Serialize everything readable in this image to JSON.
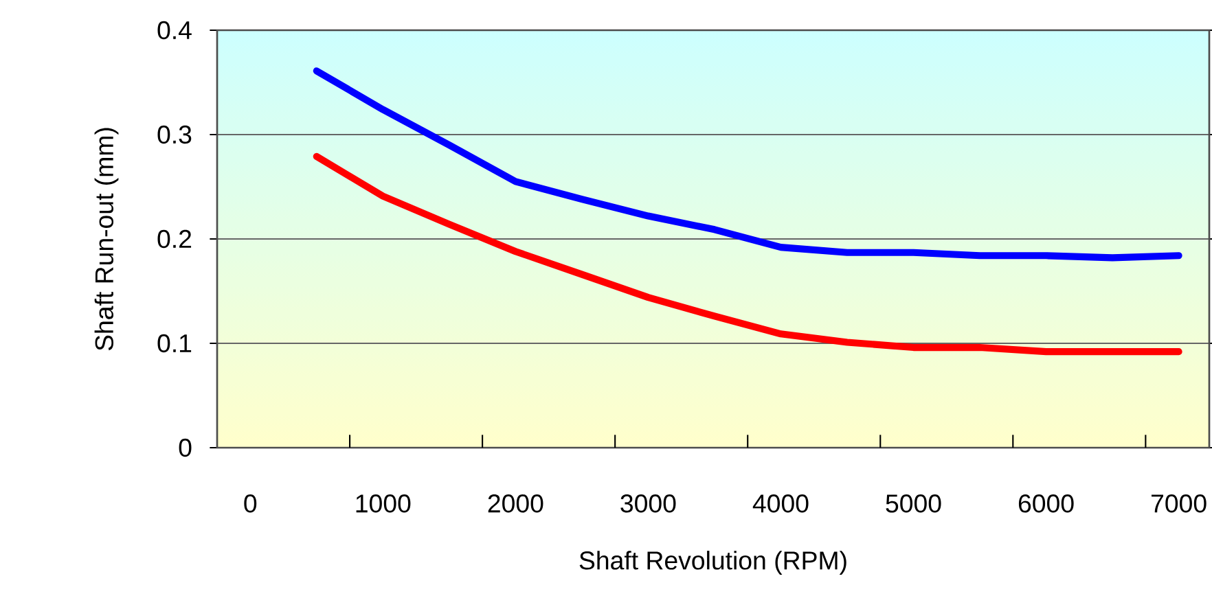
{
  "chart_data": {
    "type": "line",
    "xlabel": "Shaft Revolution (RPM)",
    "ylabel": "Shaft Run-out (mm)",
    "x": [
      500,
      1000,
      1500,
      2000,
      2500,
      3000,
      3500,
      4000,
      4500,
      5000,
      5500,
      6000,
      6500,
      7000
    ],
    "series": [
      {
        "color": "#0000ff",
        "values": [
          0.361,
          0.324,
          0.29,
          0.255,
          0.238,
          0.222,
          0.209,
          0.192,
          0.187,
          0.187,
          0.184,
          0.184,
          0.182,
          0.184
        ]
      },
      {
        "color": "#ff0000",
        "values": [
          0.279,
          0.241,
          0.214,
          0.188,
          0.166,
          0.144,
          0.126,
          0.109,
          0.101,
          0.096,
          0.096,
          0.092,
          0.092,
          0.092
        ]
      }
    ],
    "xlim": [
      -250,
      7230
    ],
    "xticks": [
      0,
      1000,
      2000,
      3000,
      4000,
      5000,
      6000,
      7000,
      {
        "value": 750,
        "label": null
      },
      {
        "value": 1750,
        "label": null
      },
      {
        "value": 2750,
        "label": null
      },
      {
        "value": 3750,
        "label": null
      },
      {
        "value": 4750,
        "label": null
      },
      {
        "value": 5750,
        "label": null
      },
      {
        "value": 6750,
        "label": null
      }
    ],
    "ylim": [
      0,
      0.4
    ],
    "yticks": [
      0,
      0.1,
      0.2,
      0.3,
      0.4
    ],
    "grid": "y",
    "marker": "none",
    "line_style": "solid"
  }
}
